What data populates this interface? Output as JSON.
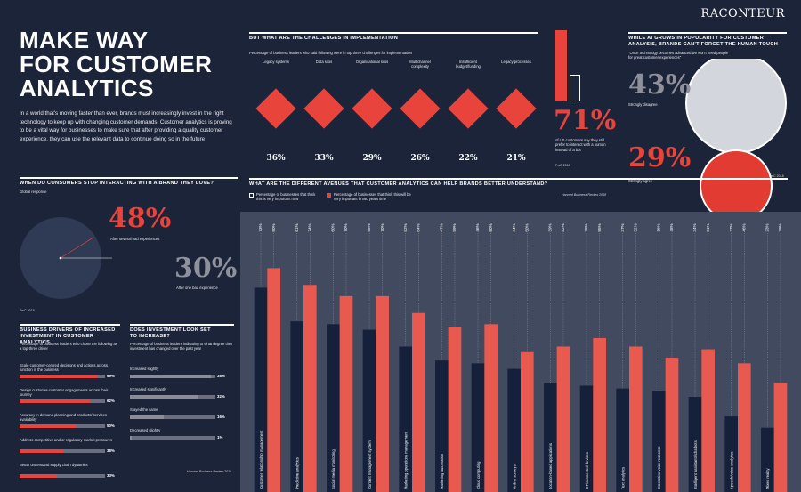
{
  "brand": "RACONTEUR",
  "title_lines": [
    "MAKE WAY",
    "FOR CUSTOMER",
    "ANALYTICS"
  ],
  "intro": "In a world that's moving faster than ever, brands must increasingly invest in the right technology to keep up with changing customer demands. Customer analytics is proving to be a vital way for businesses to make sure that after providing a quality customer experience, they can use the relevant data to continue doing so in the future",
  "challenges": {
    "heading": "BUT WHAT ARE THE CHALLENGES IN IMPLEMENTATION",
    "subtitle": "Percentage of business leaders who said following were in top three challenges for implementation",
    "items": [
      {
        "label": "Legacy systems",
        "value": "36%"
      },
      {
        "label": "Data silos",
        "value": "33%"
      },
      {
        "label": "Organisational silos",
        "value": "29%"
      },
      {
        "label": "Multichannel complexity",
        "value": "26%"
      },
      {
        "label": "Insufficient budget/funding",
        "value": "22%"
      },
      {
        "label": "Legacy processes",
        "value": "21%"
      }
    ],
    "stat": "71%",
    "stat_text": "of US customers say they still prefer to interact with a human instead of a bot",
    "stat_fill": 0.71,
    "source": "PwC 2018"
  },
  "human": {
    "heading": "WHILE AI GROWS IN POPULARITY FOR CUSTOMER ANALYSIS, BRANDS CAN'T FORGET THE HUMAN TOUCH",
    "quote": "\"Once technology becomes advanced we won't need people for great customer experiences\"",
    "disagree_value": "43%",
    "disagree_label": "Strongly disagree",
    "agree_value": "29%",
    "agree_label": "Strongly agree",
    "disagree_fraction": 0.43,
    "agree_fraction": 0.29,
    "source": "PwC 2018"
  },
  "stop": {
    "heading": "WHEN DO CONSUMERS STOP INTERACTING WITH A BRAND THEY LOVE?",
    "subtitle": "Global response",
    "a_value": "48%",
    "a_label": "After several bad experiences",
    "b_value": "30%",
    "b_label": "After one bad experience",
    "a_fraction": 0.48,
    "b_fraction": 0.3,
    "source": "PwC 2018"
  },
  "drivers": {
    "heading": "BUSINESS DRIVERS OF INCREASED INVESTMENT IN CUSTOMER ANALYTICS",
    "subtitle": "Percentage of business leaders who chose the following as a top-three driver",
    "items": [
      {
        "label": "Scale customer-centred decisions and actions across function in the business",
        "value": "69%",
        "fraction": 0.69
      },
      {
        "label": "Design customer-customer engagements across their journey",
        "value": "62%",
        "fraction": 0.62
      },
      {
        "label": "Accuracy in demand planning and products/ services availability",
        "value": "50%",
        "fraction": 0.5
      },
      {
        "label": "Address competitive and/or regulatory market pressures",
        "value": "38%",
        "fraction": 0.38
      },
      {
        "label": "Better understand supply chain dynamics",
        "value": "33%",
        "fraction": 0.33
      }
    ]
  },
  "investment": {
    "heading": "DOES INVESTMENT LOOK SET TO INCREASE?",
    "subtitle": "Percentage of business leaders indicating to what degree their investment has changed over the past year",
    "items": [
      {
        "label": "Increased slightly",
        "value": "38%",
        "fraction": 0.38
      },
      {
        "label": "Increased significantly",
        "value": "32%",
        "fraction": 0.32
      },
      {
        "label": "Stayed the same",
        "value": "16%",
        "fraction": 0.16
      },
      {
        "label": "Decreased slightly",
        "value": "1%",
        "fraction": 0.01
      }
    ],
    "source": "Harvard Business Review 2018"
  },
  "chart_data": {
    "type": "bar",
    "title": "WHAT ARE THE DIFFERENT AVENUES THAT CUSTOMER ANALYTICS CAN HELP BRANDS BETTER UNDERSTAND?",
    "source": "Harvard Business Review 2018",
    "categories": [
      "Customer relationship management",
      "Predictive analytics",
      "Social media monitoring",
      "Content management system",
      "Marketing operations management",
      "Marketing automation",
      "Cloud computing",
      "Online surveys",
      "Location-based applications",
      "IoT/connected devices",
      "Text analytics",
      "Interactive voice response",
      "Intelligent assistants/chatbots",
      "Speech/voice analytics",
      "Mixed reality"
    ],
    "series": [
      {
        "name": "Percentage of businesses that think this is very important now",
        "color": "#15203a",
        "values": [
          73,
          61,
          60,
          58,
          52,
          47,
          46,
          44,
          39,
          38,
          37,
          36,
          34,
          27,
          23
        ]
      },
      {
        "name": "Percentage of businesses that think this will be very important in two years time",
        "color": "#e85a50",
        "values": [
          80,
          74,
          70,
          70,
          64,
          59,
          60,
          50,
          52,
          55,
          52,
          48,
          51,
          46,
          39
        ]
      }
    ],
    "labels_a": [
      "73%",
      "61%",
      "60%",
      "58%",
      "52%",
      "47%",
      "46%",
      "44%",
      "39%",
      "38%",
      "37%",
      "36%",
      "34%",
      "27%",
      "23%"
    ],
    "labels_b": [
      "80%",
      "74%",
      "70%",
      "70%",
      "64%",
      "59%",
      "60%",
      "50%",
      "52%",
      "55%",
      "52%",
      "48%",
      "51%",
      "46%",
      "39%"
    ],
    "ylim": [
      0,
      100
    ]
  }
}
